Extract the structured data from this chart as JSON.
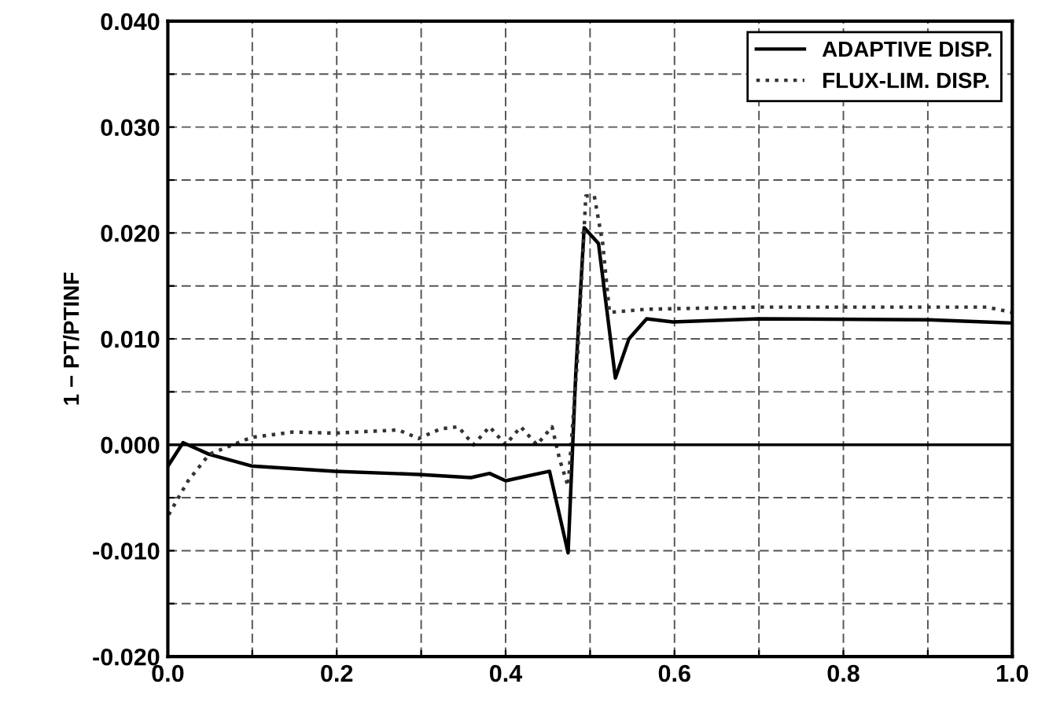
{
  "chart_data": {
    "type": "line",
    "ylabel": "1 − PT/PTINF",
    "xlim": [
      0,
      1
    ],
    "ylim": [
      -0.02,
      0.04
    ],
    "xticks": [
      {
        "value": 0,
        "label": "0.0"
      },
      {
        "value": 0.1,
        "label": null
      },
      {
        "value": 0.2,
        "label": "0.2"
      },
      {
        "value": 0.3,
        "label": null
      },
      {
        "value": 0.4,
        "label": "0.4"
      },
      {
        "value": 0.5,
        "label": null
      },
      {
        "value": 0.6,
        "label": "0.6"
      },
      {
        "value": 0.7,
        "label": null
      },
      {
        "value": 0.8,
        "label": "0.8"
      },
      {
        "value": 0.9,
        "label": null
      },
      {
        "value": 1,
        "label": "1.0"
      }
    ],
    "yticks": [
      {
        "value": -0.02,
        "label": "-0.020"
      },
      {
        "value": -0.015,
        "label": null
      },
      {
        "value": -0.01,
        "label": "-0.010"
      },
      {
        "value": -0.005,
        "label": null
      },
      {
        "value": 0,
        "label": "0.000"
      },
      {
        "value": 0.005,
        "label": null
      },
      {
        "value": 0.01,
        "label": "0.010"
      },
      {
        "value": 0.015,
        "label": null
      },
      {
        "value": 0.02,
        "label": "0.020"
      },
      {
        "value": 0.025,
        "label": null
      },
      {
        "value": 0.03,
        "label": "0.030"
      },
      {
        "value": 0.035,
        "label": null
      },
      {
        "value": 0.04,
        "label": "0.040"
      }
    ],
    "grid": true,
    "legend": "top right",
    "ref_lines": [
      {
        "axis": "y",
        "value": 0,
        "color": "#000000",
        "line_style": "solid"
      }
    ],
    "series": [
      {
        "name": "ADAPTIVE DISP.",
        "color": "#000000",
        "line_style": "solid",
        "x": [
          0.001,
          0.018,
          0.049,
          0.099,
          0.198,
          0.297,
          0.359,
          0.381,
          0.4,
          0.452,
          0.474,
          0.483,
          0.493,
          0.51,
          0.53,
          0.546,
          0.567,
          0.598,
          0.7,
          0.9,
          1.0
        ],
        "values": [
          -0.0019,
          0.0002,
          -0.0009,
          -0.002,
          -0.0025,
          -0.0028,
          -0.0031,
          -0.0027,
          -0.0034,
          -0.0025,
          -0.0102,
          0.0066,
          0.0205,
          0.019,
          0.0063,
          0.01,
          0.0119,
          0.0116,
          0.0119,
          0.0118,
          0.0115
        ]
      },
      {
        "name": "FLUX-LIM. DISP.",
        "color": "#333333",
        "line_style": "dotted",
        "x": [
          0.001,
          0.024,
          0.049,
          0.099,
          0.148,
          0.198,
          0.248,
          0.273,
          0.297,
          0.323,
          0.344,
          0.362,
          0.381,
          0.4,
          0.418,
          0.437,
          0.455,
          0.464,
          0.474,
          0.485,
          0.495,
          0.505,
          0.515,
          0.523,
          0.567,
          0.7,
          0.97,
          1.0
        ],
        "values": [
          -0.0066,
          -0.0034,
          -0.0009,
          0.0007,
          0.0012,
          0.0011,
          0.0013,
          0.0014,
          0.0006,
          0.0015,
          0.0017,
          0.0,
          0.0017,
          0.0,
          0.0017,
          0.0,
          0.0017,
          -0.0014,
          -0.0039,
          0.008,
          0.0235,
          0.0235,
          0.019,
          0.0125,
          0.0128,
          0.013,
          0.013,
          0.0125
        ]
      }
    ]
  }
}
